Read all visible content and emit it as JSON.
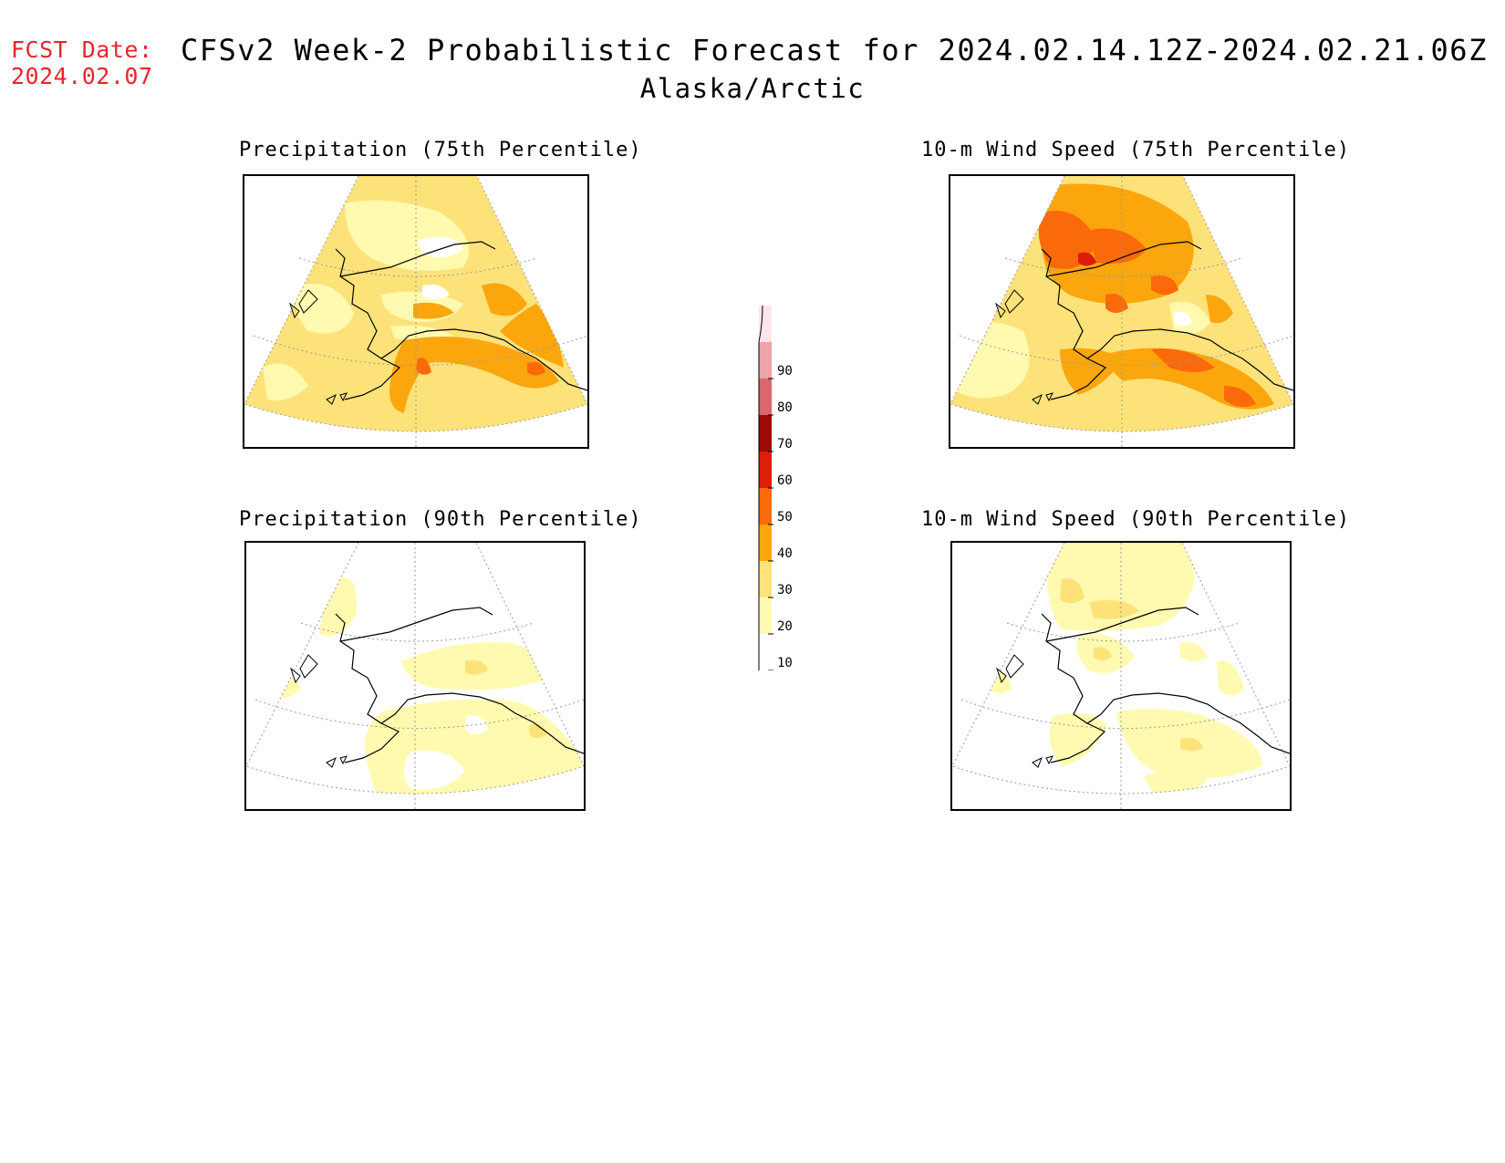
{
  "header": {
    "fcst_label": "FCST Date:",
    "fcst_date": "2024.02.07",
    "title": "CFSv2 Week-2 Probabilistic Forecast for 2024.02.14.12Z-2024.02.21.06Z",
    "subtitle": "Alaska/Arctic"
  },
  "panels": [
    {
      "title": "Precipitation (75th Percentile)"
    },
    {
      "title": "10-m Wind Speed (75th Percentile)"
    },
    {
      "title": "Precipitation (90th Percentile)"
    },
    {
      "title": "10-m Wind Speed (90th Percentile)"
    }
  ],
  "colorbar": {
    "levels": [
      "10",
      "20",
      "30",
      "40",
      "50",
      "60",
      "70",
      "80",
      "90"
    ],
    "colors": [
      "#fffaaf",
      "#fde27a",
      "#fca60e",
      "#fb6a0a",
      "#dc1d0a",
      "#9b0a04",
      "#d9676b",
      "#eea3a8",
      "#ffe4e8"
    ]
  },
  "palette": {
    "light_yellow": "#fffaaf",
    "yellow": "#fde27a",
    "orange": "#fca60e",
    "dark_orange": "#fb6a0a",
    "red": "#dc1d0a",
    "fcst_color": "#e8242c"
  }
}
